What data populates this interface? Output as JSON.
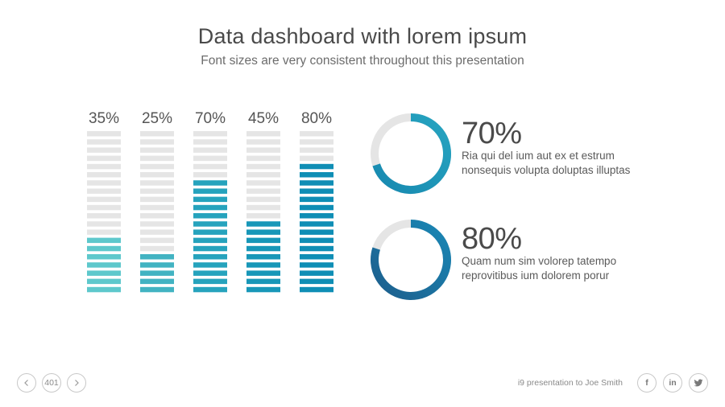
{
  "header": {
    "title": "Data dashboard with lorem ipsum",
    "subtitle": "Font sizes are very consistent throughout this presentation"
  },
  "chart_data": [
    {
      "type": "bar",
      "title": "",
      "categories": [],
      "segments_total": 20,
      "values": [
        35,
        25,
        70,
        45,
        80
      ],
      "labels": [
        "35%",
        "25%",
        "70%",
        "45%",
        "80%"
      ],
      "colors": [
        "#5ec8cc",
        "#42b3c2",
        "#26a3bd",
        "#1897b8",
        "#0f8eb5"
      ],
      "empty_color": "#e5e5e5",
      "ylim": [
        0,
        100
      ],
      "grid": false,
      "legend": "none"
    },
    {
      "type": "pie",
      "title": "",
      "value": 70,
      "label": "70%",
      "description": [
        "Ria qui del ium aut ex et estrum",
        "nonsequis volupta doluptas illuptas"
      ],
      "color": "#27a4c0",
      "color_end": "#1789b0",
      "track_color": "#e5e5e5"
    },
    {
      "type": "pie",
      "title": "",
      "value": 80,
      "label": "80%",
      "description": [
        "Quam num sim volorep tatempo",
        "reprovitibus ium dolorem porur"
      ],
      "color": "#1a87b5",
      "color_end": "#1c5e8c",
      "track_color": "#e5e5e5"
    }
  ],
  "footer": {
    "prev_icon": "chevron-left-icon",
    "next_icon": "chevron-right-icon",
    "page_number": "401",
    "caption": "i9 presentation to Joe Smith",
    "social": [
      {
        "icon": "facebook-icon",
        "glyph": "f"
      },
      {
        "icon": "linkedin-icon",
        "glyph": "in"
      },
      {
        "icon": "twitter-icon",
        "glyph": "t"
      }
    ]
  }
}
